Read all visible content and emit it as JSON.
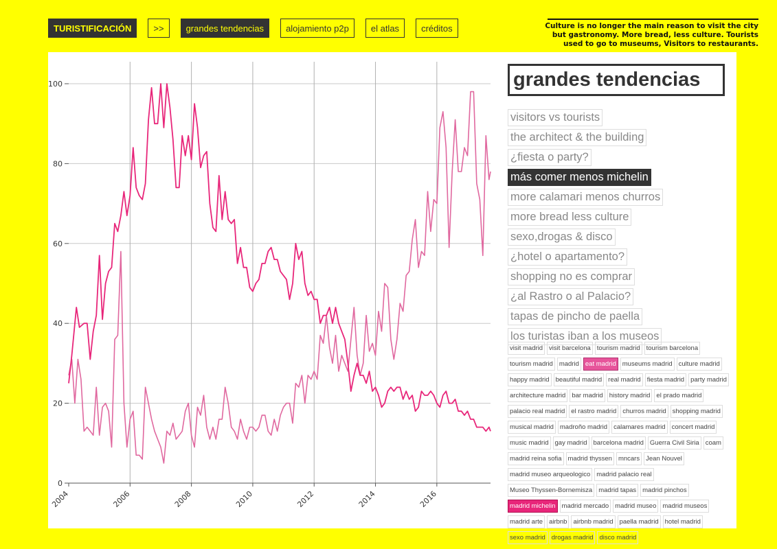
{
  "nav": {
    "brand": "TURISTIFICACIÓN",
    "arrow": ">>",
    "items": [
      "grandes tendencias",
      "alojamiento p2p",
      "el atlas",
      "créditos"
    ],
    "active": 0
  },
  "quote": "Culture is no longer the main reason to visit the city but gastronomy. More bread, less culture. Tourists used to go to museums, Visitors to restaurants.",
  "section_title": "grandes tendencias",
  "topics": [
    "visitors vs tourists",
    "the architect & the building",
    "¿fiesta o party?",
    "más comer menos michelin",
    "more calamari menos churros",
    "more bread less culture",
    "sexo,drogas & disco",
    "¿hotel o apartamento?",
    "shopping no es comprar",
    "¿al Rastro o al Palacio?",
    "tapas de pincho de paella",
    "los turistas iban a los museos"
  ],
  "active_topic": 3,
  "tags": [
    "visit madrid",
    "visit barcelona",
    "tourism madrid",
    "tourism barcelona",
    "tourism madrid",
    "madrid",
    "eat madrid",
    "museums madrid",
    "culture madrid",
    "happy madrid",
    "beautiful madrid",
    "real madrid",
    "fiesta madrid",
    "party madrid",
    "architecture madrid",
    "bar madrid",
    "history madrid",
    "el prado madrid",
    "palacio real madrid",
    "el rastro madrid",
    "churros madrid",
    "shopping madrid",
    "musical madrid",
    "madroño madrid",
    "calamares madrid",
    "concert madrid",
    "music madrid",
    "gay madrid",
    "barcelona madrid",
    "Guerra Civil Siria",
    "coam",
    "madrid reina sofia",
    "madrid thyssen",
    "mncars",
    "Jean Nouvel",
    "madrid museo arqueologico",
    "madrid palacio real",
    "Museo Thyssen-Bornemisza",
    "madrid tapas",
    "madrid pinchos",
    "madrid michelin",
    "madrid mercado",
    "madrid museo",
    "madrid museos",
    "madrid arte",
    "airbnb",
    "airbnb madrid",
    "paella madrid",
    "hotel madrid",
    "sexo madrid",
    "drogas madrid",
    "disco madrid"
  ],
  "active_tags": {
    "6": "pink",
    "40": "red"
  },
  "colors": {
    "background": "#ffff00",
    "series_red": "#e8267a",
    "series_pink": "#e0689f",
    "dark": "#333333"
  },
  "chart_data": {
    "type": "line",
    "x_start": "2004-01",
    "x_end": "2017-09",
    "xlim": [
      2004,
      2017.75
    ],
    "ylim": [
      0,
      100
    ],
    "x_ticks": [
      "2004",
      "2006",
      "2008",
      "2010",
      "2012",
      "2014",
      "2016"
    ],
    "y_ticks": [
      "0",
      "20",
      "40",
      "60",
      "80",
      "100"
    ],
    "vertical_grid_years": [
      2006,
      2008,
      2010,
      2012,
      2014,
      2016
    ],
    "grid": true,
    "series": [
      {
        "color": "#e8267a",
        "anchors": [
          [
            2004.0,
            25
          ],
          [
            2004.1,
            32
          ],
          [
            2004.25,
            44
          ],
          [
            2004.35,
            39
          ],
          [
            2004.5,
            40
          ],
          [
            2004.6,
            40
          ],
          [
            2004.7,
            31
          ],
          [
            2004.8,
            38
          ],
          [
            2004.9,
            42
          ],
          [
            2005.0,
            57
          ],
          [
            2005.1,
            41
          ],
          [
            2005.2,
            50
          ],
          [
            2005.3,
            53
          ],
          [
            2005.4,
            54
          ],
          [
            2005.5,
            65
          ],
          [
            2005.6,
            63
          ],
          [
            2005.7,
            67
          ],
          [
            2005.8,
            73
          ],
          [
            2005.9,
            67
          ],
          [
            2006.0,
            72
          ],
          [
            2006.1,
            84
          ],
          [
            2006.2,
            74
          ],
          [
            2006.3,
            72
          ],
          [
            2006.4,
            71
          ],
          [
            2006.5,
            75
          ],
          [
            2006.6,
            91
          ],
          [
            2006.7,
            99
          ],
          [
            2006.8,
            90
          ],
          [
            2006.9,
            90
          ],
          [
            2007.0,
            100
          ],
          [
            2007.1,
            89
          ],
          [
            2007.2,
            100
          ],
          [
            2007.3,
            94
          ],
          [
            2007.4,
            86
          ],
          [
            2007.5,
            74
          ],
          [
            2007.6,
            74
          ],
          [
            2007.7,
            87
          ],
          [
            2007.8,
            82
          ],
          [
            2007.9,
            87
          ],
          [
            2008.0,
            81
          ],
          [
            2008.1,
            95
          ],
          [
            2008.2,
            89
          ],
          [
            2008.3,
            79
          ],
          [
            2008.4,
            82
          ],
          [
            2008.5,
            83
          ],
          [
            2008.6,
            70
          ],
          [
            2008.7,
            64
          ],
          [
            2008.8,
            63
          ],
          [
            2008.9,
            77
          ],
          [
            2009.0,
            66
          ],
          [
            2009.1,
            73
          ],
          [
            2009.2,
            66
          ],
          [
            2009.3,
            65
          ],
          [
            2009.4,
            66
          ],
          [
            2009.5,
            55
          ],
          [
            2009.6,
            59
          ],
          [
            2009.7,
            54
          ],
          [
            2009.8,
            54
          ],
          [
            2009.9,
            49
          ],
          [
            2010.0,
            48
          ],
          [
            2010.1,
            50
          ],
          [
            2010.2,
            51
          ],
          [
            2010.3,
            55
          ],
          [
            2010.4,
            55
          ],
          [
            2010.5,
            58
          ],
          [
            2010.6,
            59
          ],
          [
            2010.7,
            56
          ],
          [
            2010.8,
            56
          ],
          [
            2010.9,
            53
          ],
          [
            2011.0,
            52
          ],
          [
            2011.1,
            51
          ],
          [
            2011.2,
            46
          ],
          [
            2011.3,
            50
          ],
          [
            2011.4,
            60
          ],
          [
            2011.5,
            56
          ],
          [
            2011.6,
            58
          ],
          [
            2011.7,
            50
          ],
          [
            2011.8,
            47
          ],
          [
            2011.9,
            48
          ],
          [
            2012.0,
            46
          ],
          [
            2012.1,
            46
          ],
          [
            2012.2,
            40
          ],
          [
            2012.3,
            42
          ],
          [
            2012.4,
            42
          ],
          [
            2012.5,
            44
          ],
          [
            2012.6,
            40
          ],
          [
            2012.7,
            44
          ],
          [
            2012.8,
            40
          ],
          [
            2012.9,
            38
          ],
          [
            2013.0,
            36
          ],
          [
            2013.1,
            30
          ],
          [
            2013.2,
            23
          ],
          [
            2013.3,
            27
          ],
          [
            2013.4,
            30
          ],
          [
            2013.5,
            27
          ],
          [
            2013.6,
            27
          ],
          [
            2013.7,
            25
          ],
          [
            2013.8,
            28
          ],
          [
            2013.9,
            23
          ],
          [
            2014.0,
            24
          ],
          [
            2014.1,
            22
          ],
          [
            2014.2,
            19
          ],
          [
            2014.3,
            20
          ],
          [
            2014.4,
            23
          ],
          [
            2014.5,
            24
          ],
          [
            2014.6,
            23
          ],
          [
            2014.7,
            24
          ],
          [
            2014.8,
            24
          ],
          [
            2014.9,
            21
          ],
          [
            2015.0,
            23
          ],
          [
            2015.1,
            21
          ],
          [
            2015.2,
            22
          ],
          [
            2015.3,
            18
          ],
          [
            2015.4,
            19
          ],
          [
            2015.5,
            23
          ],
          [
            2015.6,
            22
          ],
          [
            2015.7,
            22
          ],
          [
            2015.8,
            23
          ],
          [
            2015.9,
            22
          ],
          [
            2016.0,
            20
          ],
          [
            2016.1,
            19
          ],
          [
            2016.2,
            22
          ],
          [
            2016.3,
            23
          ],
          [
            2016.4,
            20
          ],
          [
            2016.5,
            20
          ],
          [
            2016.6,
            21
          ],
          [
            2016.7,
            18
          ],
          [
            2016.8,
            18
          ],
          [
            2016.9,
            17
          ],
          [
            2017.0,
            18
          ],
          [
            2017.1,
            16
          ],
          [
            2017.2,
            16
          ],
          [
            2017.3,
            14
          ],
          [
            2017.4,
            14
          ],
          [
            2017.5,
            14
          ],
          [
            2017.6,
            13
          ],
          [
            2017.7,
            14
          ],
          [
            2017.75,
            13
          ]
        ]
      },
      {
        "color": "#e0689f",
        "anchors": [
          [
            2004.0,
            27
          ],
          [
            2004.1,
            31
          ],
          [
            2004.2,
            20
          ],
          [
            2004.3,
            31
          ],
          [
            2004.4,
            26
          ],
          [
            2004.5,
            13
          ],
          [
            2004.6,
            14
          ],
          [
            2004.7,
            13
          ],
          [
            2004.8,
            12
          ],
          [
            2004.9,
            24
          ],
          [
            2005.0,
            12
          ],
          [
            2005.1,
            19
          ],
          [
            2005.2,
            20
          ],
          [
            2005.3,
            18
          ],
          [
            2005.4,
            9
          ],
          [
            2005.5,
            36
          ],
          [
            2005.6,
            37
          ],
          [
            2005.7,
            58
          ],
          [
            2005.8,
            20
          ],
          [
            2005.9,
            9
          ],
          [
            2006.0,
            16
          ],
          [
            2006.1,
            18
          ],
          [
            2006.2,
            7
          ],
          [
            2006.3,
            7
          ],
          [
            2006.4,
            6
          ],
          [
            2006.5,
            24
          ],
          [
            2006.6,
            20
          ],
          [
            2006.7,
            16
          ],
          [
            2006.8,
            13
          ],
          [
            2006.9,
            11
          ],
          [
            2007.0,
            9
          ],
          [
            2007.1,
            5
          ],
          [
            2007.2,
            13
          ],
          [
            2007.3,
            12
          ],
          [
            2007.4,
            15
          ],
          [
            2007.5,
            11
          ],
          [
            2007.6,
            12
          ],
          [
            2007.7,
            13
          ],
          [
            2007.8,
            18
          ],
          [
            2007.9,
            20
          ],
          [
            2008.0,
            12
          ],
          [
            2008.1,
            9
          ],
          [
            2008.2,
            19
          ],
          [
            2008.3,
            17
          ],
          [
            2008.4,
            22
          ],
          [
            2008.5,
            14
          ],
          [
            2008.6,
            11
          ],
          [
            2008.7,
            14
          ],
          [
            2008.8,
            11
          ],
          [
            2008.9,
            16
          ],
          [
            2009.0,
            16
          ],
          [
            2009.1,
            24
          ],
          [
            2009.2,
            20
          ],
          [
            2009.3,
            14
          ],
          [
            2009.4,
            13
          ],
          [
            2009.5,
            11
          ],
          [
            2009.6,
            16
          ],
          [
            2009.7,
            13
          ],
          [
            2009.8,
            11
          ],
          [
            2009.9,
            14
          ],
          [
            2010.0,
            14
          ],
          [
            2010.1,
            13
          ],
          [
            2010.2,
            14
          ],
          [
            2010.3,
            17
          ],
          [
            2010.4,
            17
          ],
          [
            2010.5,
            13
          ],
          [
            2010.6,
            12
          ],
          [
            2010.7,
            16
          ],
          [
            2010.8,
            13
          ],
          [
            2010.9,
            17
          ],
          [
            2011.0,
            19
          ],
          [
            2011.1,
            20
          ],
          [
            2011.2,
            20
          ],
          [
            2011.3,
            15
          ],
          [
            2011.4,
            25
          ],
          [
            2011.5,
            24
          ],
          [
            2011.6,
            27
          ],
          [
            2011.7,
            20
          ],
          [
            2011.8,
            27
          ],
          [
            2011.9,
            26
          ],
          [
            2012.0,
            28
          ],
          [
            2012.1,
            26
          ],
          [
            2012.2,
            37
          ],
          [
            2012.3,
            35
          ],
          [
            2012.4,
            42
          ],
          [
            2012.5,
            34
          ],
          [
            2012.6,
            30
          ],
          [
            2012.7,
            37
          ],
          [
            2012.8,
            28
          ],
          [
            2012.9,
            32
          ],
          [
            2013.0,
            30
          ],
          [
            2013.1,
            28
          ],
          [
            2013.2,
            36
          ],
          [
            2013.3,
            44
          ],
          [
            2013.4,
            32
          ],
          [
            2013.5,
            27
          ],
          [
            2013.6,
            30
          ],
          [
            2013.7,
            42
          ],
          [
            2013.8,
            33
          ],
          [
            2013.9,
            35
          ],
          [
            2014.0,
            32
          ],
          [
            2014.1,
            43
          ],
          [
            2014.2,
            38
          ],
          [
            2014.3,
            50
          ],
          [
            2014.4,
            49
          ],
          [
            2014.5,
            36
          ],
          [
            2014.6,
            31
          ],
          [
            2014.7,
            36
          ],
          [
            2014.8,
            45
          ],
          [
            2014.9,
            43
          ],
          [
            2015.0,
            52
          ],
          [
            2015.1,
            53
          ],
          [
            2015.2,
            61
          ],
          [
            2015.3,
            66
          ],
          [
            2015.4,
            54
          ],
          [
            2015.5,
            58
          ],
          [
            2015.6,
            57
          ],
          [
            2015.7,
            73
          ],
          [
            2015.8,
            63
          ],
          [
            2015.9,
            71
          ],
          [
            2016.0,
            70
          ],
          [
            2016.1,
            89
          ],
          [
            2016.2,
            93
          ],
          [
            2016.3,
            84
          ],
          [
            2016.4,
            59
          ],
          [
            2016.5,
            78
          ],
          [
            2016.6,
            91
          ],
          [
            2016.7,
            78
          ],
          [
            2016.8,
            78
          ],
          [
            2016.9,
            84
          ],
          [
            2017.0,
            82
          ],
          [
            2017.1,
            98
          ],
          [
            2017.2,
            98
          ],
          [
            2017.3,
            75
          ],
          [
            2017.4,
            71
          ],
          [
            2017.5,
            57
          ],
          [
            2017.6,
            87
          ],
          [
            2017.7,
            76
          ],
          [
            2017.75,
            78
          ]
        ]
      }
    ]
  }
}
